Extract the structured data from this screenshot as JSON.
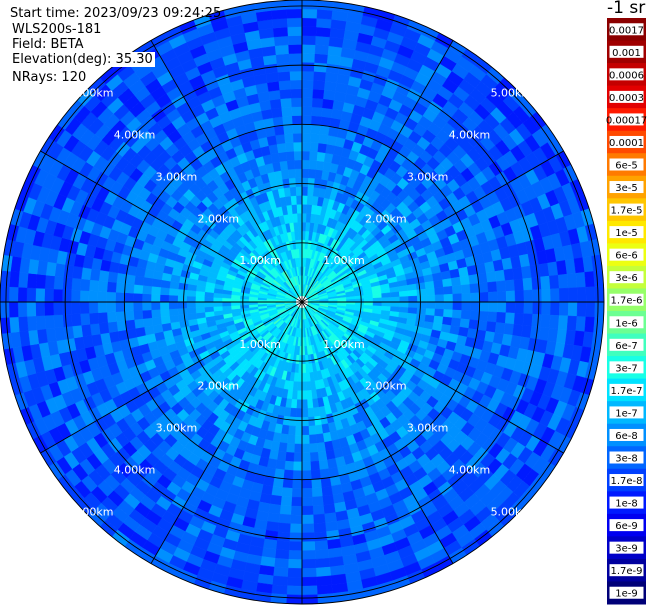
{
  "header": {
    "start_time": "Start time: 2023/09/23 09:24:25",
    "instrument": "WLS200s-181",
    "field": "Field: BETA",
    "elevation": "Elevation(deg): 35.30",
    "nrays": "NRays: 120"
  },
  "chart_data": {
    "type": "heatmap",
    "projection": "polar (PPI)",
    "range_rings_km": [
      1,
      2,
      3,
      4,
      5
    ],
    "ring_labels": [
      "1.00km",
      "2.00km",
      "3.00km",
      "4.00km",
      "5.00km"
    ],
    "max_range_km": 5.1,
    "radial_lines": 12,
    "grid": true,
    "colorbar": {
      "unit": "-1 sr",
      "placement": "right",
      "labels": [
        "0.0017",
        "0.001",
        "0.0006",
        "0.0003",
        "0.00017",
        "0.0001",
        "6e-5",
        "3e-5",
        "1.7e-5",
        "1e-5",
        "6e-6",
        "3e-6",
        "1.7e-6",
        "1e-6",
        "6e-7",
        "3e-7",
        "1.7e-7",
        "1e-7",
        "6e-8",
        "3e-8",
        "1.7e-8",
        "1e-8",
        "6e-9",
        "3e-9",
        "1.7e-9",
        "1e-9"
      ],
      "colors": [
        "#8b0000",
        "#a00000",
        "#c40000",
        "#e20000",
        "#ff1a00",
        "#ff4a00",
        "#ff7a00",
        "#ffa200",
        "#ffc600",
        "#ffe800",
        "#ecff12",
        "#c4ff3a",
        "#96ff69",
        "#6cff92",
        "#40ffbe",
        "#18ffe6",
        "#00e2ff",
        "#00b8ff",
        "#0090ff",
        "#0066ff",
        "#0040ff",
        "#001aff",
        "#0000f0",
        "#0000c8",
        "#00009e",
        "#000078"
      ]
    },
    "field_profile": [
      {
        "range_km": 0.0,
        "log10_beta": -6.6
      },
      {
        "range_km": 1.0,
        "log10_beta": -6.8
      },
      {
        "range_km": 2.0,
        "log10_beta": -7.2
      },
      {
        "range_km": 3.0,
        "log10_beta": -7.5
      },
      {
        "range_km": 4.0,
        "log10_beta": -7.6
      },
      {
        "range_km": 5.1,
        "log10_beta": -7.7
      }
    ]
  }
}
